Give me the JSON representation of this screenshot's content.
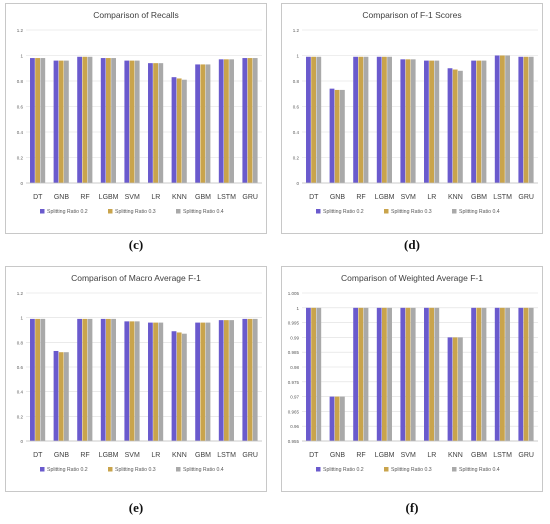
{
  "captions": {
    "c": "(c)",
    "d": "(d)",
    "e": "(e)",
    "f": "(f)"
  },
  "colors": {
    "ratio_02": "#6a5acd",
    "ratio_03": "#c9a44c",
    "ratio_04": "#a9a9a9"
  },
  "chart_data": [
    {
      "id": "c",
      "type": "bar",
      "title": "Comparison of Recalls",
      "categories": [
        "DT",
        "GNB",
        "RF",
        "LGBM",
        "SVM",
        "LR",
        "KNN",
        "GBM",
        "LSTM",
        "GRU"
      ],
      "ylim": [
        0,
        1.2
      ],
      "yticks": [
        "0",
        "0.2",
        "0.4",
        "0.6",
        "0.8",
        "1",
        "1.2"
      ],
      "grid": true,
      "legend": "bottom",
      "series": [
        {
          "name": "Splitting Ratio 0.2",
          "values": [
            0.98,
            0.96,
            0.99,
            0.98,
            0.96,
            0.94,
            0.83,
            0.93,
            0.97,
            0.98
          ]
        },
        {
          "name": "Splitting Ratio 0.3",
          "values": [
            0.98,
            0.96,
            0.99,
            0.98,
            0.96,
            0.94,
            0.82,
            0.93,
            0.97,
            0.98
          ]
        },
        {
          "name": "Splitting Ratio 0.4",
          "values": [
            0.98,
            0.96,
            0.99,
            0.98,
            0.96,
            0.94,
            0.81,
            0.93,
            0.97,
            0.98
          ]
        }
      ]
    },
    {
      "id": "d",
      "type": "bar",
      "title": "Comparison of F-1 Scores",
      "categories": [
        "DT",
        "GNB",
        "RF",
        "LGBM",
        "SVM",
        "LR",
        "KNN",
        "GBM",
        "LSTM",
        "GRU"
      ],
      "ylim": [
        0,
        1.2
      ],
      "yticks": [
        "0",
        "0.2",
        "0.4",
        "0.6",
        "0.8",
        "1",
        "1.2"
      ],
      "grid": true,
      "legend": "bottom",
      "series": [
        {
          "name": "Splitting Ratio 0.2",
          "values": [
            0.99,
            0.74,
            0.99,
            0.99,
            0.97,
            0.96,
            0.9,
            0.96,
            1.0,
            0.99
          ]
        },
        {
          "name": "Splitting Ratio 0.3",
          "values": [
            0.99,
            0.73,
            0.99,
            0.99,
            0.97,
            0.96,
            0.89,
            0.96,
            1.0,
            0.99
          ]
        },
        {
          "name": "Splitting Ratio 0.4",
          "values": [
            0.99,
            0.73,
            0.99,
            0.99,
            0.97,
            0.96,
            0.88,
            0.96,
            1.0,
            0.99
          ]
        }
      ]
    },
    {
      "id": "e",
      "type": "bar",
      "title": "Comparison of Macro Average F-1",
      "categories": [
        "DT",
        "GNB",
        "RF",
        "LGBM",
        "SVM",
        "LR",
        "KNN",
        "GBM",
        "LSTM",
        "GRU"
      ],
      "ylim": [
        0,
        1.2
      ],
      "yticks": [
        "0",
        "0.2",
        "0.4",
        "0.6",
        "0.8",
        "1",
        "1.2"
      ],
      "grid": true,
      "legend": "bottom",
      "series": [
        {
          "name": "Splitting Ratio 0.2",
          "values": [
            0.99,
            0.73,
            0.99,
            0.99,
            0.97,
            0.96,
            0.89,
            0.96,
            0.98,
            0.99
          ]
        },
        {
          "name": "Splitting Ratio 0.3",
          "values": [
            0.99,
            0.72,
            0.99,
            0.99,
            0.97,
            0.96,
            0.88,
            0.96,
            0.98,
            0.99
          ]
        },
        {
          "name": "Splitting Ratio 0.4",
          "values": [
            0.99,
            0.72,
            0.99,
            0.99,
            0.97,
            0.96,
            0.87,
            0.96,
            0.98,
            0.99
          ]
        }
      ]
    },
    {
      "id": "f",
      "type": "bar",
      "title": "Comparison of Weighted Average F-1",
      "categories": [
        "DT",
        "GNB",
        "RF",
        "LGBM",
        "SVM",
        "LR",
        "KNN",
        "GBM",
        "LSTM",
        "GRU"
      ],
      "ylim": [
        0.955,
        1.005
      ],
      "yticks": [
        "0.955",
        "0.96",
        "0.965",
        "0.97",
        "0.975",
        "0.98",
        "0.985",
        "0.99",
        "0.995",
        "1",
        "1.005"
      ],
      "grid": true,
      "legend": "bottom",
      "series": [
        {
          "name": "Splitting Ratio 0.2",
          "values": [
            1.0,
            0.97,
            1.0,
            1.0,
            1.0,
            1.0,
            0.99,
            1.0,
            1.0,
            1.0
          ]
        },
        {
          "name": "Splitting Ratio 0.3",
          "values": [
            1.0,
            0.97,
            1.0,
            1.0,
            1.0,
            1.0,
            0.99,
            1.0,
            1.0,
            1.0
          ]
        },
        {
          "name": "Splitting Ratio 0.4",
          "values": [
            1.0,
            0.97,
            1.0,
            1.0,
            1.0,
            1.0,
            0.99,
            1.0,
            1.0,
            1.0
          ]
        }
      ]
    }
  ]
}
